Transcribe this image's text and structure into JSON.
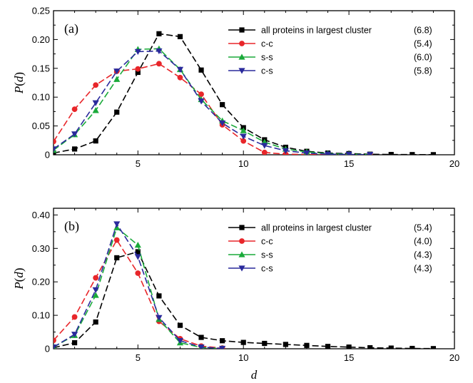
{
  "chart_data": [
    {
      "type": "line",
      "panel_label": "(a)",
      "xlabel": "",
      "ylabel": "P(d)",
      "xlim": [
        1,
        20
      ],
      "ylim": [
        0,
        0.25
      ],
      "xticks": [
        5,
        10,
        15,
        20
      ],
      "yticks": [
        0,
        0.05,
        0.1,
        0.15,
        0.2,
        0.25
      ],
      "ytick_labels": [
        "0",
        "0.05",
        "0.10",
        "0.15",
        "0.20",
        "0.25"
      ],
      "grid": false,
      "legend_position": "top-right",
      "series": [
        {
          "name": "all proteins in largest cluster",
          "legend_value": "(6.8)",
          "color": "#000000",
          "marker": "square",
          "x": [
            1,
            2,
            3,
            4,
            5,
            6,
            7,
            8,
            9,
            10,
            11,
            12,
            13,
            14,
            15,
            16,
            17,
            18,
            19
          ],
          "y": [
            0.003,
            0.01,
            0.024,
            0.074,
            0.143,
            0.21,
            0.205,
            0.147,
            0.087,
            0.047,
            0.026,
            0.013,
            0.006,
            0.003,
            0.002,
            0.001,
            0.0005,
            0.0003,
            0.0002
          ]
        },
        {
          "name": "c-c",
          "legend_value": "(5.4)",
          "color": "#e8262a",
          "marker": "circle",
          "x": [
            1,
            2,
            3,
            4,
            5,
            6,
            7,
            8,
            9,
            10,
            11,
            12,
            13,
            14,
            15,
            16
          ],
          "y": [
            0.023,
            0.079,
            0.121,
            0.145,
            0.149,
            0.158,
            0.134,
            0.105,
            0.052,
            0.024,
            0.004,
            0.001,
            0.0005,
            0.0002,
            0.0001,
            0.0001
          ]
        },
        {
          "name": "s-s",
          "legend_value": "(6.0)",
          "color": "#1aaa3a",
          "marker": "triangle-up",
          "x": [
            1,
            2,
            3,
            4,
            5,
            6,
            7,
            8,
            9,
            10,
            11,
            12,
            13,
            14,
            15,
            16
          ],
          "y": [
            0.008,
            0.035,
            0.077,
            0.131,
            0.183,
            0.184,
            0.148,
            0.096,
            0.059,
            0.042,
            0.022,
            0.01,
            0.005,
            0.002,
            0.001,
            0.0005
          ]
        },
        {
          "name": "c-s",
          "legend_value": "(5.8)",
          "color": "#2a2a9c",
          "marker": "triangle-down",
          "x": [
            1,
            2,
            3,
            4,
            5,
            6,
            7,
            8,
            9,
            10,
            11,
            12,
            13,
            14,
            15,
            16
          ],
          "y": [
            0.01,
            0.036,
            0.09,
            0.145,
            0.179,
            0.18,
            0.148,
            0.093,
            0.055,
            0.032,
            0.016,
            0.007,
            0.003,
            0.001,
            0.0005,
            0.0002
          ]
        }
      ]
    },
    {
      "type": "line",
      "panel_label": "(b)",
      "xlabel": "d",
      "ylabel": "P(d)",
      "xlim": [
        1,
        20
      ],
      "ylim": [
        0,
        0.42
      ],
      "xticks": [
        5,
        10,
        15,
        20
      ],
      "yticks": [
        0,
        0.1,
        0.2,
        0.3,
        0.4
      ],
      "ytick_labels": [
        "0",
        "0.10",
        "0.20",
        "0.30",
        "0.40"
      ],
      "grid": false,
      "legend_position": "top-right",
      "series": [
        {
          "name": "all proteins in largest cluster",
          "legend_value": "(5.4)",
          "color": "#000000",
          "marker": "square",
          "x": [
            1,
            2,
            3,
            4,
            5,
            6,
            7,
            8,
            9,
            10,
            11,
            12,
            13,
            14,
            15,
            16,
            17,
            18,
            19
          ],
          "y": [
            0.003,
            0.018,
            0.08,
            0.272,
            0.29,
            0.158,
            0.07,
            0.034,
            0.024,
            0.019,
            0.016,
            0.013,
            0.01,
            0.007,
            0.005,
            0.003,
            0.002,
            0.001,
            0.0005
          ]
        },
        {
          "name": "c-c",
          "legend_value": "(4.0)",
          "color": "#e8262a",
          "marker": "circle",
          "x": [
            1,
            2,
            3,
            4,
            5,
            6,
            7,
            8,
            9
          ],
          "y": [
            0.025,
            0.095,
            0.212,
            0.325,
            0.226,
            0.082,
            0.03,
            0.008,
            0.002
          ]
        },
        {
          "name": "s-s",
          "legend_value": "(4.3)",
          "color": "#1aaa3a",
          "marker": "triangle-up",
          "x": [
            1,
            2,
            3,
            4,
            5,
            6,
            7,
            8,
            9
          ],
          "y": [
            0.005,
            0.04,
            0.16,
            0.362,
            0.31,
            0.088,
            0.018,
            0.004,
            0.001
          ]
        },
        {
          "name": "c-s",
          "legend_value": "(4.3)",
          "color": "#2a2a9c",
          "marker": "triangle-down",
          "x": [
            1,
            2,
            3,
            4,
            5,
            6,
            7,
            8,
            9
          ],
          "y": [
            0.005,
            0.043,
            0.176,
            0.373,
            0.275,
            0.093,
            0.024,
            0.005,
            0.001
          ]
        }
      ]
    }
  ]
}
